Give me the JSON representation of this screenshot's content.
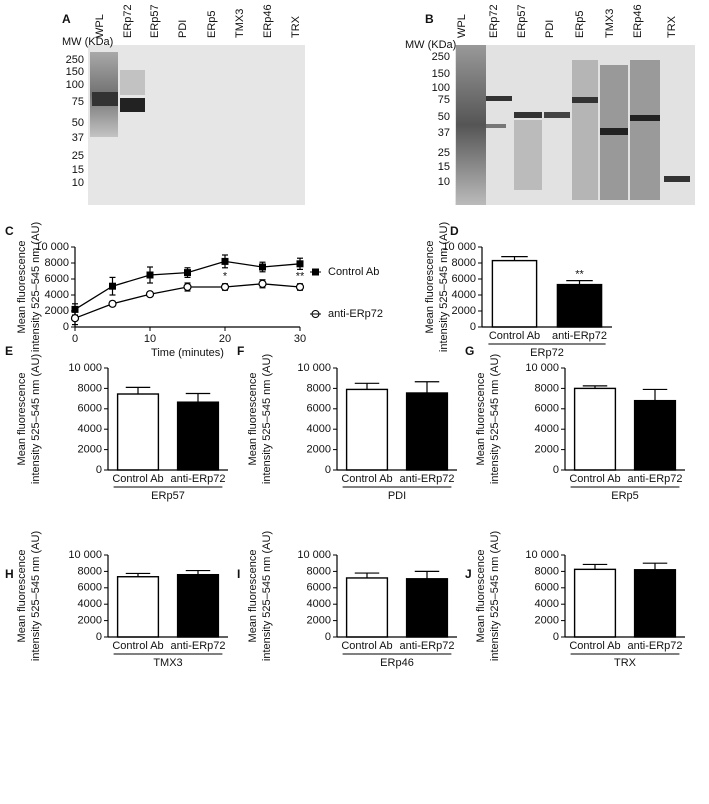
{
  "blots": [
    {
      "label": "A",
      "mw_title": "MW (KDa)",
      "mw": [
        "250",
        "150",
        "100",
        "75",
        "50",
        "37",
        "25",
        "15",
        "10"
      ],
      "lanes": [
        "WPL",
        "ERp72",
        "ERp57",
        "PDI",
        "ERp5",
        "TMX3",
        "ERp46",
        "TRX"
      ]
    },
    {
      "label": "B",
      "mw_title": "MW (KDa)",
      "mw": [
        "250",
        "150",
        "100",
        "75",
        "50",
        "37",
        "25",
        "15",
        "10"
      ],
      "lanes": [
        "WPL",
        "ERp72",
        "ERp57",
        "PDI",
        "ERp5",
        "TMX3",
        "ERp46",
        "TRX"
      ]
    }
  ],
  "chart_data": [
    {
      "type": "line",
      "label": "C",
      "ylabel": [
        "Mean fluorescence",
        "intensity 525–545 nm (AU)"
      ],
      "xlabel": "Time (minutes)",
      "x": [
        0,
        5,
        10,
        15,
        20,
        25,
        30
      ],
      "xlim": [
        0,
        30
      ],
      "xticks": [
        0,
        10,
        20,
        30
      ],
      "ylim": [
        0,
        10000
      ],
      "yticks": [
        0,
        2000,
        4000,
        6000,
        8000,
        {
          "value": 10000,
          "label": "10 000"
        }
      ],
      "series": [
        {
          "name": "Control Ab",
          "color": "#000000",
          "marker": "square",
          "values": [
            2200,
            5100,
            6500,
            6800,
            8200,
            7500,
            7900
          ],
          "errors": [
            700,
            1100,
            1000,
            600,
            800,
            600,
            700
          ]
        },
        {
          "name": "anti-ERp72",
          "color": "#000000",
          "marker": "open-circle",
          "values": [
            1100,
            2900,
            4100,
            5000,
            5000,
            5400,
            5000
          ],
          "errors": [
            800,
            300,
            100,
            500,
            400,
            500,
            400
          ]
        }
      ],
      "annotations": [
        {
          "x": 20,
          "text": "*"
        },
        {
          "x": 30,
          "text": "**"
        }
      ]
    },
    {
      "type": "bar",
      "label": "D",
      "ylabel": [
        "Mean fluorescence",
        "intensity 525–545 nm (AU)"
      ],
      "group": "ERp72",
      "categories": [
        "Control Ab",
        "anti-ERp72"
      ],
      "colors": [
        "#ffffff",
        "#000000"
      ],
      "values": [
        8300,
        5300
      ],
      "errors": [
        500,
        500
      ],
      "ylim": [
        0,
        10000
      ],
      "yticks": [
        0,
        2000,
        4000,
        6000,
        8000,
        {
          "value": 10000,
          "label": "10 000"
        }
      ],
      "annotations": [
        {
          "category": "anti-ERp72",
          "text": "**"
        }
      ]
    },
    {
      "type": "bar",
      "label": "E",
      "ylabel": [
        "Mean fluorescence",
        "intensity 525–545 nm (AU)"
      ],
      "group": "ERp57",
      "categories": [
        "Control Ab",
        "anti-ERp72"
      ],
      "colors": [
        "#ffffff",
        "#000000"
      ],
      "values": [
        7450,
        6650
      ],
      "errors": [
        650,
        850
      ],
      "ylim": [
        0,
        10000
      ],
      "yticks": [
        0,
        2000,
        4000,
        6000,
        8000,
        {
          "value": 10000,
          "label": "10 000"
        }
      ]
    },
    {
      "type": "bar",
      "label": "F",
      "ylabel": [
        "Mean fluorescence",
        "intensity 525–545 nm (AU)"
      ],
      "group": "PDI",
      "categories": [
        "Control Ab",
        "anti-ERp72"
      ],
      "colors": [
        "#ffffff",
        "#000000"
      ],
      "values": [
        7900,
        7550
      ],
      "errors": [
        600,
        1100
      ],
      "ylim": [
        0,
        10000
      ],
      "yticks": [
        0,
        2000,
        4000,
        6000,
        8000,
        {
          "value": 10000,
          "label": "10 000"
        }
      ]
    },
    {
      "type": "bar",
      "label": "G",
      "ylabel": [
        "Mean fluorescence",
        "intensity 525–545 nm (AU)"
      ],
      "group": "ERp5",
      "categories": [
        "Control Ab",
        "anti-ERp72"
      ],
      "colors": [
        "#ffffff",
        "#000000"
      ],
      "values": [
        8000,
        6800
      ],
      "errors": [
        250,
        1100
      ],
      "ylim": [
        0,
        10000
      ],
      "yticks": [
        0,
        2000,
        4000,
        6000,
        8000,
        {
          "value": 10000,
          "label": "10 000"
        }
      ]
    },
    {
      "type": "bar",
      "label": "H",
      "ylabel": [
        "Mean fluorescence",
        "intensity 525–545 nm (AU)"
      ],
      "group": "TMX3",
      "categories": [
        "Control Ab",
        "anti-ERp72"
      ],
      "colors": [
        "#ffffff",
        "#000000"
      ],
      "values": [
        7350,
        7600
      ],
      "errors": [
        400,
        500
      ],
      "ylim": [
        0,
        10000
      ],
      "yticks": [
        0,
        2000,
        4000,
        6000,
        8000,
        {
          "value": 10000,
          "label": "10 000"
        }
      ]
    },
    {
      "type": "bar",
      "label": "I",
      "ylabel": [
        "Mean fluorescence",
        "intensity 525–545 nm (AU)"
      ],
      "group": "ERp46",
      "categories": [
        "Control Ab",
        "anti-ERp72"
      ],
      "colors": [
        "#ffffff",
        "#000000"
      ],
      "values": [
        7200,
        7100
      ],
      "errors": [
        600,
        900
      ],
      "ylim": [
        0,
        10000
      ],
      "yticks": [
        0,
        2000,
        4000,
        6000,
        8000,
        {
          "value": 10000,
          "label": "10 000"
        }
      ]
    },
    {
      "type": "bar",
      "label": "J",
      "ylabel": [
        "Mean fluorescence",
        "intensity 525–545 nm (AU)"
      ],
      "group": "TRX",
      "categories": [
        "Control Ab",
        "anti-ERp72"
      ],
      "colors": [
        "#ffffff",
        "#000000"
      ],
      "values": [
        8250,
        8200
      ],
      "errors": [
        600,
        800
      ],
      "ylim": [
        0,
        10000
      ],
      "yticks": [
        0,
        2000,
        4000,
        6000,
        8000,
        {
          "value": 10000,
          "label": "10 000"
        }
      ]
    }
  ]
}
